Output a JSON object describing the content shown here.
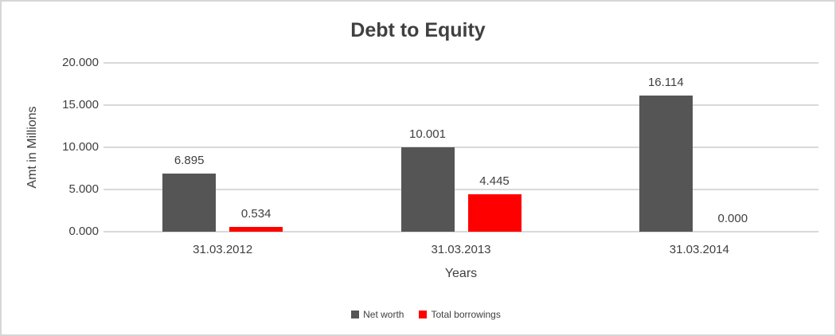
{
  "chart_data": {
    "type": "bar",
    "title": "Debt to Equity",
    "xlabel": "Years",
    "ylabel": "Amt in Millions",
    "categories": [
      "31.03.2012",
      "31.03.2013",
      "31.03.2014"
    ],
    "series": [
      {
        "name": "Net worth",
        "color": "#555555",
        "values": [
          6.895,
          10.001,
          16.114
        ],
        "labels": [
          "6.895",
          "10.001",
          "16.114"
        ]
      },
      {
        "name": "Total borrowings",
        "color": "#FF0000",
        "values": [
          0.534,
          4.445,
          0.0
        ],
        "labels": [
          "0.534",
          "4.445",
          "0.000"
        ]
      }
    ],
    "ylim": [
      0,
      20
    ],
    "yticks": [
      {
        "value": 0,
        "label": "0.000"
      },
      {
        "value": 5,
        "label": "5.000"
      },
      {
        "value": 10,
        "label": "10.000"
      },
      {
        "value": 15,
        "label": "15.000"
      },
      {
        "value": 20,
        "label": "20.000"
      }
    ],
    "grid": true,
    "legend_position": "bottom",
    "colors": {
      "grid": "#D9D9D9",
      "axis_line": "#D9D9D9",
      "text": "#404040",
      "border": "#D7D5D5",
      "background": "#FFFFFF"
    }
  }
}
